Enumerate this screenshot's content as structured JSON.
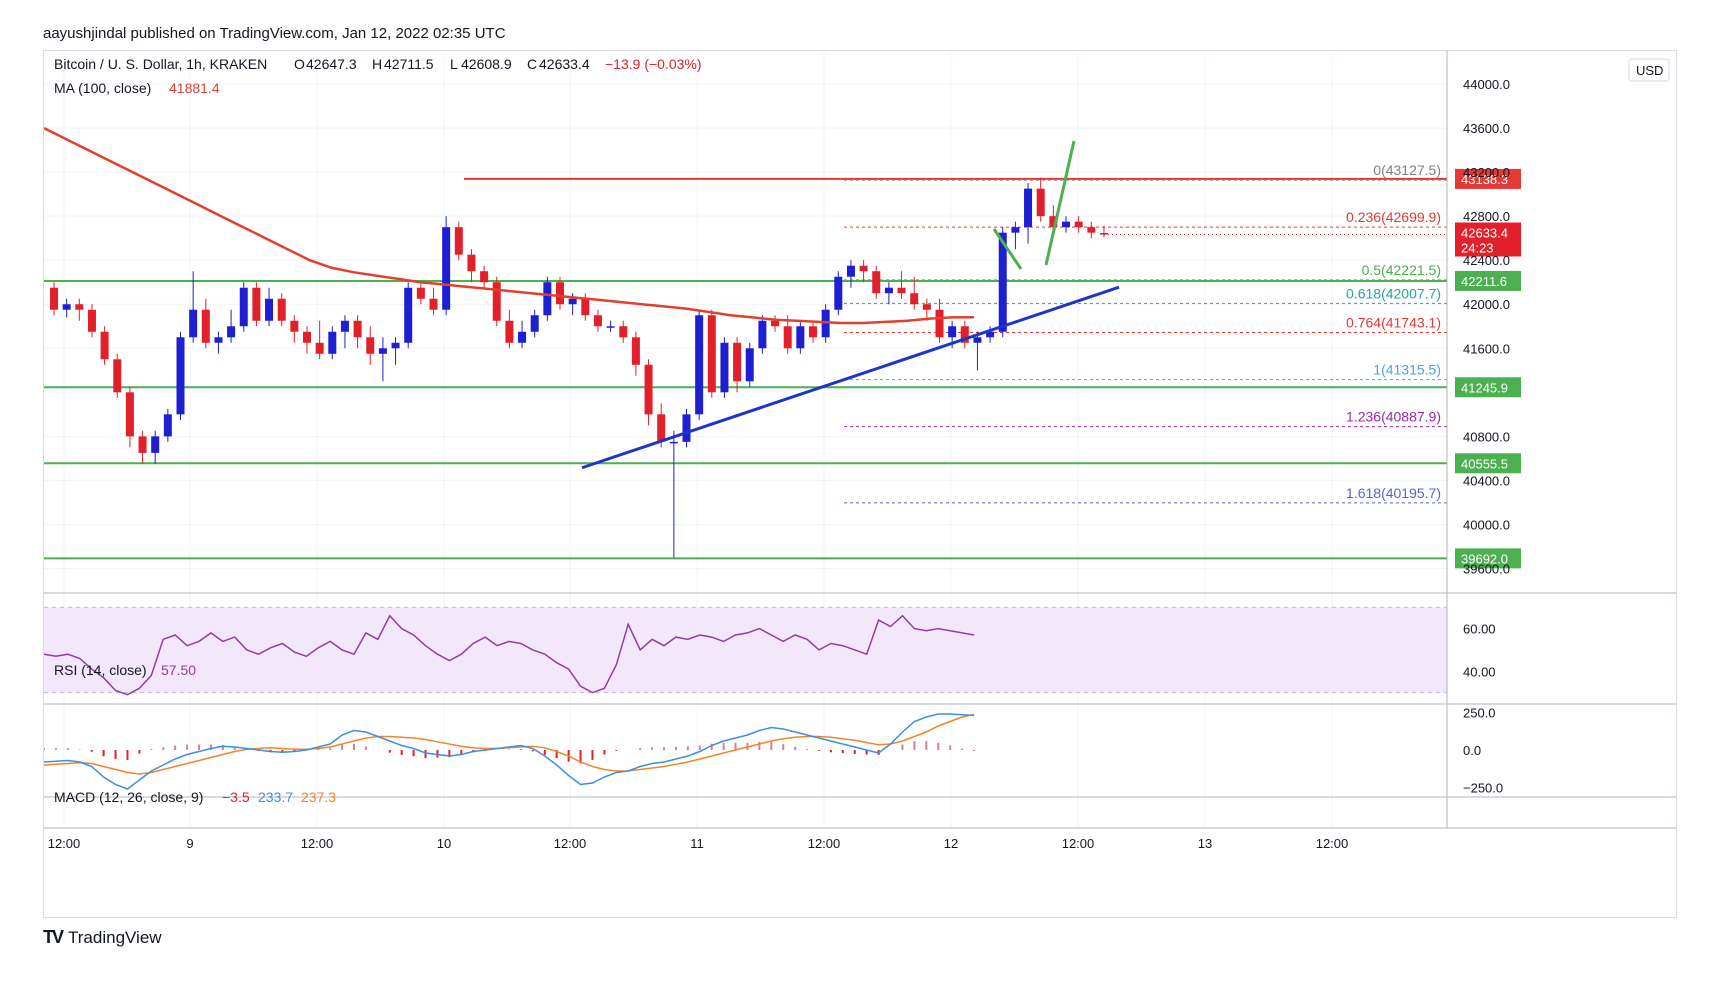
{
  "header": {
    "publisher": "aayushjindal published on TradingView.com, Jan 12, 2022 02:35 UTC"
  },
  "footer": {
    "brand": "TradingView",
    "mark": "TV"
  },
  "colors": {
    "up": "#1e1ed2",
    "down": "#e1202a",
    "ma": "#e1402f",
    "support": "#4caf50",
    "trend": "#1e36c8",
    "resistance": "#e53935",
    "rsi": "#8e3fa0",
    "macd": "#3d8fe0",
    "signal": "#f0862c"
  },
  "legend": {
    "symbol": "Bitcoin / U. S. Dollar, 1h, KRAKEN",
    "o_label": "O",
    "o": "42647.3",
    "h_label": "H",
    "h": "42711.5",
    "l_label": "L",
    "l": "42608.9",
    "c_label": "C",
    "c": "42633.4",
    "change": "−13.9 (−0.03%)",
    "ma_label": "MA (100, close)",
    "ma_value": "41881.4"
  },
  "currency": "USD",
  "chart_data": {
    "type": "candlestick",
    "price_axis": {
      "ticks": [
        "44000.0",
        "43600.0",
        "43200.0",
        "42800.0",
        "42400.0",
        "42000.0",
        "41600.0",
        "40800.0",
        "40400.0",
        "40000.0",
        "39600.0"
      ],
      "ylim": [
        39450,
        44300
      ]
    },
    "time_axis": {
      "ticks": [
        "12:00",
        "9",
        "12:00",
        "10",
        "12:00",
        "11",
        "12:00",
        "12",
        "12:00",
        "13",
        "12:00"
      ]
    },
    "candles": [
      [
        42150,
        42200,
        41900,
        41950
      ],
      [
        41950,
        42050,
        41880,
        42000
      ],
      [
        42000,
        42050,
        41850,
        41950
      ],
      [
        41950,
        42000,
        41700,
        41750
      ],
      [
        41750,
        41800,
        41450,
        41500
      ],
      [
        41500,
        41550,
        41150,
        41200
      ],
      [
        41200,
        41250,
        40700,
        40800
      ],
      [
        40800,
        40850,
        40550,
        40650
      ],
      [
        40650,
        40850,
        40550,
        40800
      ],
      [
        40800,
        41050,
        40750,
        41000
      ],
      [
        41000,
        41750,
        40950,
        41700
      ],
      [
        41700,
        42300,
        41650,
        41950
      ],
      [
        41950,
        42050,
        41600,
        41650
      ],
      [
        41650,
        41750,
        41550,
        41700
      ],
      [
        41700,
        41950,
        41650,
        41800
      ],
      [
        41800,
        42200,
        41750,
        42150
      ],
      [
        42150,
        42200,
        41800,
        41850
      ],
      [
        41850,
        42150,
        41800,
        42050
      ],
      [
        42050,
        42100,
        41800,
        41850
      ],
      [
        41850,
        41900,
        41650,
        41750
      ],
      [
        41750,
        41800,
        41550,
        41650
      ],
      [
        41650,
        41850,
        41500,
        41550
      ],
      [
        41550,
        41800,
        41500,
        41750
      ],
      [
        41750,
        41900,
        41600,
        41850
      ],
      [
        41850,
        41900,
        41600,
        41700
      ],
      [
        41700,
        41800,
        41450,
        41550
      ],
      [
        41550,
        41700,
        41300,
        41600
      ],
      [
        41600,
        41700,
        41450,
        41650
      ],
      [
        41650,
        42200,
        41600,
        42150
      ],
      [
        42150,
        42200,
        42000,
        42050
      ],
      [
        42050,
        42150,
        41900,
        41950
      ],
      [
        41950,
        42800,
        41900,
        42700
      ],
      [
        42700,
        42750,
        42400,
        42450
      ],
      [
        42450,
        42500,
        42200,
        42300
      ],
      [
        42300,
        42350,
        42150,
        42200
      ],
      [
        42200,
        42250,
        41800,
        41850
      ],
      [
        41850,
        41950,
        41600,
        41650
      ],
      [
        41650,
        41850,
        41600,
        41750
      ],
      [
        41750,
        41950,
        41700,
        41900
      ],
      [
        41900,
        42250,
        41850,
        42200
      ],
      [
        42200,
        42250,
        41950,
        42000
      ],
      [
        42000,
        42100,
        41900,
        42050
      ],
      [
        42050,
        42100,
        41850,
        41900
      ],
      [
        41900,
        41950,
        41750,
        41800
      ],
      [
        41800,
        41850,
        41750,
        41800
      ],
      [
        41800,
        41850,
        41650,
        41700
      ],
      [
        41700,
        41750,
        41350,
        41450
      ],
      [
        41450,
        41500,
        40900,
        41000
      ],
      [
        41000,
        41100,
        40700,
        40750
      ],
      [
        40750,
        40850,
        39700,
        40750
      ],
      [
        40750,
        41050,
        40700,
        41000
      ],
      [
        41000,
        41950,
        40950,
        41900
      ],
      [
        41900,
        41950,
        41150,
        41200
      ],
      [
        41200,
        41700,
        41150,
        41650
      ],
      [
        41650,
        41700,
        41200,
        41300
      ],
      [
        41300,
        41650,
        41250,
        41600
      ],
      [
        41600,
        41900,
        41550,
        41850
      ],
      [
        41850,
        41900,
        41750,
        41800
      ],
      [
        41800,
        41900,
        41550,
        41600
      ],
      [
        41600,
        41850,
        41550,
        41800
      ],
      [
        41800,
        41850,
        41650,
        41700
      ],
      [
        41700,
        42000,
        41650,
        41950
      ],
      [
        41950,
        42300,
        41900,
        42250
      ],
      [
        42250,
        42400,
        42150,
        42350
      ],
      [
        42350,
        42400,
        42200,
        42300
      ],
      [
        42300,
        42350,
        42050,
        42100
      ],
      [
        42100,
        42200,
        42000,
        42150
      ],
      [
        42150,
        42300,
        42050,
        42100
      ],
      [
        42100,
        42250,
        41950,
        42000
      ],
      [
        42000,
        42050,
        41850,
        41950
      ],
      [
        41950,
        42050,
        41650,
        41700
      ],
      [
        41700,
        41850,
        41600,
        41800
      ],
      [
        41800,
        41850,
        41600,
        41650
      ],
      [
        41650,
        41750,
        41400,
        41700
      ],
      [
        41700,
        41800,
        41650,
        41750
      ],
      [
        41750,
        42700,
        41700,
        42650
      ],
      [
        42650,
        42750,
        42500,
        42700
      ],
      [
        42700,
        43100,
        42550,
        43050
      ],
      [
        43050,
        43150,
        42750,
        42800
      ],
      [
        42800,
        42900,
        42650,
        42700
      ],
      [
        42700,
        42800,
        42650,
        42750
      ],
      [
        42750,
        42800,
        42650,
        42700
      ],
      [
        42700,
        42750,
        42600,
        42650
      ],
      [
        42647,
        42711,
        42608,
        42633
      ]
    ],
    "ma100": [
      43600,
      43500,
      43400,
      43300,
      43200,
      43100,
      43000,
      42900,
      42800,
      42700,
      42600,
      42500,
      42400,
      42330,
      42290,
      42260,
      42230,
      42200,
      42180,
      42160,
      42140,
      42120,
      42100,
      42080,
      42060,
      42040,
      42020,
      42000,
      41980,
      41960,
      41930,
      41900,
      41880,
      41860,
      41850,
      41840,
      41830,
      41830,
      41840,
      41850,
      41870,
      41880,
      41881
    ],
    "resistance": {
      "label": "43138.3",
      "value": 43138.3
    },
    "price_tag": {
      "value": "42633.4",
      "countdown": "24:23"
    },
    "support_levels": [
      {
        "label": "42211.6",
        "value": 42211.6
      },
      {
        "label": "41245.9",
        "value": 41245.9
      },
      {
        "label": "40555.5",
        "value": 40555.5
      },
      {
        "label": "39692.0",
        "value": 39692.0
      }
    ],
    "fib_levels": [
      {
        "ratio": "0",
        "value": 43127.5,
        "text": "0(43127.5)",
        "color": "#808080"
      },
      {
        "ratio": "0.236",
        "value": 42699.9,
        "text": "0.236(42699.9)",
        "color": "#e53935"
      },
      {
        "ratio": "0.5",
        "value": 42221.5,
        "text": "0.5(42221.5)",
        "color": "#4caf50"
      },
      {
        "ratio": "0.618",
        "value": 42007.7,
        "text": "0.618(42007.7)",
        "color": "#26a69a"
      },
      {
        "ratio": "0.764",
        "value": 41743.1,
        "text": "0.764(41743.1)",
        "color": "#e53935"
      },
      {
        "ratio": "1",
        "value": 41315.5,
        "text": "1(41315.5)",
        "color": "#4aa3df"
      },
      {
        "ratio": "1.236",
        "value": 40887.9,
        "text": "1.236(40887.9)",
        "color": "#9c27b0"
      },
      {
        "ratio": "1.618",
        "value": 40195.7,
        "text": "1.618(40195.7)",
        "color": "#5e5ce6"
      }
    ],
    "trendline": {
      "from_price": 40515,
      "to_price": 42155
    },
    "rsi": {
      "label": "RSI (14, close)",
      "value": "57.50",
      "ticks": [
        "60.00",
        "40.00"
      ],
      "band": [
        30,
        70
      ],
      "values": [
        48,
        47,
        48,
        46,
        41,
        37,
        31,
        29,
        32,
        38,
        55,
        57,
        52,
        54,
        58,
        54,
        56,
        50,
        48,
        51,
        53,
        49,
        47,
        51,
        54,
        50,
        48,
        58,
        55,
        66,
        60,
        57,
        52,
        48,
        45,
        48,
        53,
        56,
        52,
        54,
        53,
        50,
        48,
        44,
        41,
        33,
        30,
        32,
        43,
        62,
        50,
        55,
        52,
        56,
        55,
        57,
        56,
        54,
        57,
        58,
        60,
        57,
        54,
        57,
        55,
        50,
        53,
        52,
        50,
        48,
        64,
        61,
        66,
        60,
        59,
        60,
        59,
        58,
        57
      ]
    },
    "macd": {
      "label": "MACD (12, 26, close, 9)",
      "hist_value": "−3.5",
      "macd_value": "233.7",
      "signal_value": "237.3",
      "ticks": [
        "250.0",
        "0.0",
        "−250.0"
      ],
      "macd": [
        -80,
        -75,
        -70,
        -80,
        -110,
        -180,
        -230,
        -260,
        -200,
        -140,
        -100,
        -60,
        -30,
        -10,
        10,
        25,
        20,
        10,
        0,
        -10,
        -15,
        -10,
        0,
        20,
        40,
        100,
        130,
        120,
        90,
        60,
        30,
        10,
        -20,
        -30,
        -40,
        -30,
        -10,
        0,
        10,
        20,
        30,
        10,
        -40,
        -100,
        -170,
        -230,
        -220,
        -180,
        -150,
        -140,
        -110,
        -90,
        -80,
        -60,
        -40,
        -10,
        30,
        60,
        80,
        100,
        130,
        150,
        140,
        120,
        100,
        80,
        60,
        40,
        20,
        0,
        -20,
        40,
        120,
        190,
        220,
        240,
        240,
        235,
        230
      ],
      "signal": [
        -100,
        -95,
        -90,
        -85,
        -90,
        -110,
        -130,
        -150,
        -160,
        -150,
        -130,
        -110,
        -90,
        -70,
        -50,
        -30,
        -10,
        5,
        10,
        15,
        10,
        5,
        5,
        10,
        20,
        40,
        60,
        80,
        90,
        90,
        85,
        80,
        70,
        55,
        40,
        25,
        15,
        10,
        10,
        15,
        20,
        25,
        15,
        -10,
        -40,
        -80,
        -110,
        -130,
        -140,
        -140,
        -130,
        -120,
        -110,
        -95,
        -80,
        -60,
        -40,
        -20,
        0,
        20,
        40,
        60,
        75,
        85,
        90,
        90,
        85,
        75,
        65,
        50,
        35,
        40,
        60,
        90,
        120,
        160,
        190,
        220,
        237
      ]
    }
  }
}
